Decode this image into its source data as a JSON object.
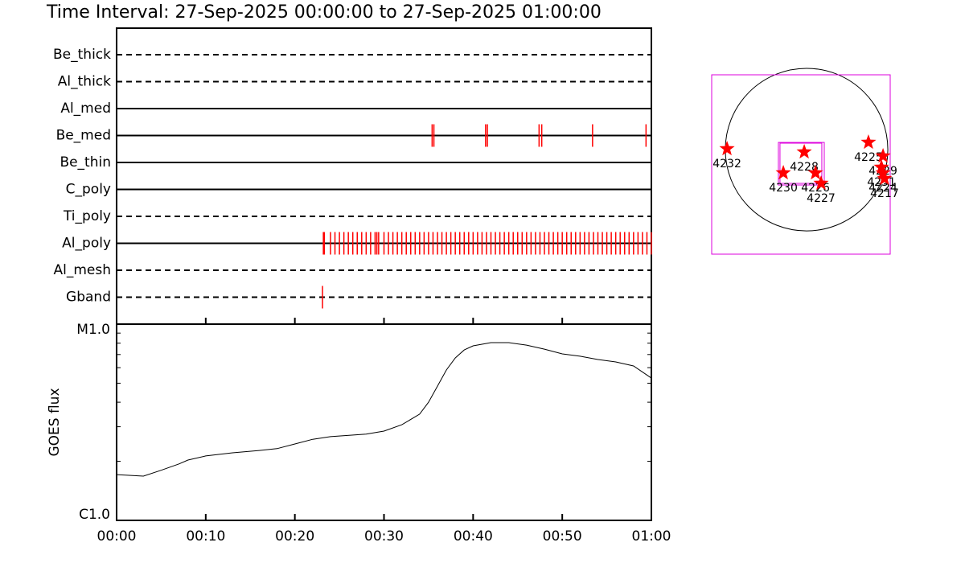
{
  "chart_data": [
    {
      "type": "timeline",
      "title": "Time Interval: 27-Sep-2025 00:00:00 to 27-Sep-2025 01:00:00",
      "categories": [
        "Be_thick",
        "Al_thick",
        "Al_med",
        "Be_med",
        "Be_thin",
        "C_poly",
        "Ti_poly",
        "Al_poly",
        "Al_mesh",
        "Gband"
      ],
      "line_styles": [
        "dashed",
        "dashed",
        "solid",
        "solid",
        "solid",
        "solid",
        "dashed",
        "solid",
        "dashed",
        "dashed"
      ],
      "events": [
        [],
        [],
        [],
        [
          35.4,
          35.6,
          41.4,
          41.6,
          47.4,
          47.7,
          53.4,
          59.4
        ],
        [],
        [],
        [],
        [
          23.2,
          23.3,
          24,
          24.5,
          25,
          25.5,
          26,
          26.5,
          27,
          27.5,
          28,
          28.5,
          29,
          29.2,
          29.4,
          30,
          30.5,
          31,
          31.5,
          32,
          32.5,
          33,
          33.5,
          34,
          34.5,
          35,
          35.5,
          36,
          36.5,
          37,
          37.5,
          38,
          38.5,
          39,
          39.5,
          40,
          40.5,
          41,
          41.5,
          42,
          42.5,
          43,
          43.5,
          44,
          44.5,
          45,
          45.5,
          46,
          46.5,
          47,
          47.5,
          48,
          48.5,
          49,
          49.5,
          50,
          50.5,
          51,
          51.5,
          52,
          52.5,
          53,
          53.5,
          54,
          54.5,
          55,
          55.5,
          56,
          56.5,
          57,
          57.5,
          58,
          58.5,
          59,
          59.5,
          60
        ],
        [],
        [
          23.1
        ]
      ],
      "color": "#ff0000",
      "xlim": [
        0,
        60
      ]
    },
    {
      "type": "line",
      "y_label": "GOES flux",
      "x": [
        0,
        3,
        5,
        7,
        8,
        10,
        13,
        16,
        18,
        20,
        22,
        24,
        28,
        30,
        32,
        34,
        35,
        36,
        37,
        38,
        39,
        40,
        42,
        44,
        46,
        48,
        50,
        52,
        54,
        56,
        58,
        60
      ],
      "values": [
        1.71e-06,
        1.68e-06,
        1.8e-06,
        1.94e-06,
        2.03e-06,
        2.13e-06,
        2.21e-06,
        2.27e-06,
        2.32e-06,
        2.45e-06,
        2.59e-06,
        2.67e-06,
        2.75e-06,
        2.85e-06,
        3.07e-06,
        3.48e-06,
        4e-06,
        4.83e-06,
        5.84e-06,
        6.73e-06,
        7.39e-06,
        7.75e-06,
        8.05e-06,
        8.05e-06,
        7.82e-06,
        7.46e-06,
        7.05e-06,
        6.86e-06,
        6.6e-06,
        6.42e-06,
        6.12e-06,
        5.31e-06
      ],
      "color": "#000000",
      "log_scale": true,
      "xlim": [
        0,
        60
      ],
      "xticks": [
        {
          "value": 0,
          "label": "00:00"
        },
        {
          "value": 10,
          "label": "00:10"
        },
        {
          "value": 20,
          "label": "00:20"
        },
        {
          "value": 30,
          "label": "00:30"
        },
        {
          "value": 40,
          "label": "00:40"
        },
        {
          "value": 50,
          "label": "00:50"
        },
        {
          "value": 60,
          "label": "01:00"
        }
      ],
      "ylim": [
        1e-06,
        1e-05
      ],
      "yticks": [
        {
          "value": 1e-06,
          "label": "C1.0"
        },
        {
          "value": 1e-05,
          "label": "M1.0"
        }
      ],
      "yminorticks": [
        2e-06,
        3e-06,
        4e-06,
        5e-06,
        6e-06,
        7e-06,
        8e-06,
        9e-06
      ]
    },
    {
      "type": "scatter",
      "xlim": [
        -1121,
        988
      ],
      "ylim": [
        -1235,
        884
      ],
      "disk_radius": 960,
      "boxes": [
        [
          -1121,
          -1235,
          988,
          884
        ],
        [
          -333,
          -418,
          209,
          85
        ],
        [
          -314,
          -399,
          180,
          76
        ]
      ],
      "box_color": "#dd00dd",
      "x": [
        -940,
        -28,
        -275,
        105,
        171,
        731,
        903,
        884,
        903,
        921
      ],
      "y": [
        10,
        -28,
        -275,
        -275,
        -399,
        86,
        -76,
        -209,
        -275,
        -342
      ],
      "labels": [
        "4232",
        "4228",
        "4230",
        "4226",
        "4227",
        "4225",
        "4229",
        "4231",
        "4224",
        "4217"
      ],
      "color": "#ff0000"
    }
  ]
}
